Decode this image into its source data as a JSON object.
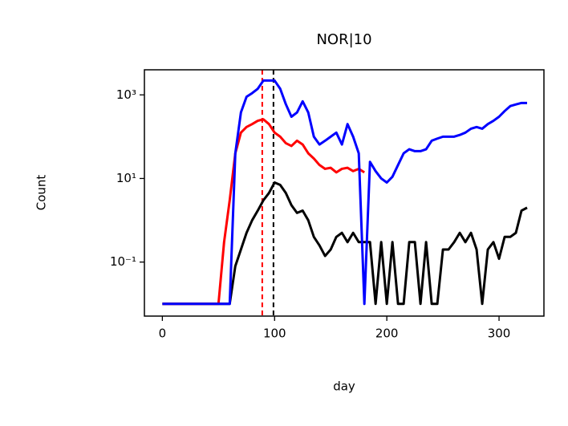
{
  "chart_data": {
    "type": "line",
    "title": "NOR|10",
    "xlabel": "day",
    "ylabel": "Count",
    "yscale": "log",
    "xlim": [
      -16,
      340
    ],
    "xticks": [
      0,
      100,
      200,
      300
    ],
    "ylim": [
      0.0051,
      3981
    ],
    "yticks": [
      {
        "value": 0.1,
        "label": "10⁻¹"
      },
      {
        "value": 10,
        "label": "10¹"
      },
      {
        "value": 1000,
        "label": "10³"
      }
    ],
    "x": [
      0,
      5,
      10,
      15,
      20,
      25,
      30,
      35,
      40,
      45,
      50,
      55,
      60,
      65,
      70,
      75,
      80,
      85,
      90,
      95,
      100,
      105,
      110,
      115,
      120,
      125,
      130,
      135,
      140,
      145,
      150,
      155,
      160,
      165,
      170,
      175,
      180,
      185,
      190,
      195,
      200,
      205,
      210,
      215,
      220,
      225,
      230,
      235,
      240,
      245,
      250,
      255,
      260,
      265,
      270,
      275,
      280,
      285,
      290,
      295,
      300,
      305,
      310,
      315,
      320,
      325
    ],
    "series": [
      {
        "color": "#000000",
        "values": [
          0.01,
          0.01,
          0.01,
          0.01,
          0.01,
          0.01,
          0.01,
          0.01,
          0.01,
          0.01,
          0.01,
          0.01,
          0.01,
          0.08,
          0.2,
          0.5,
          1,
          1.7,
          3,
          4.5,
          8,
          7,
          4.5,
          2.3,
          1.5,
          1.7,
          1,
          0.4,
          0.25,
          0.14,
          0.2,
          0.4,
          0.5,
          0.3,
          0.5,
          0.3,
          0.3,
          0.3,
          0.01,
          0.3,
          0.01,
          0.3,
          0.01,
          0.01,
          0.3,
          0.3,
          0.01,
          0.3,
          0.01,
          0.01,
          0.2,
          0.2,
          0.3,
          0.5,
          0.3,
          0.5,
          0.2,
          0.01,
          0.2,
          0.3,
          0.12,
          0.4,
          0.4,
          0.5,
          1.7,
          2
        ]
      },
      {
        "color": "#ff0000",
        "values": [
          0.01,
          0.01,
          0.01,
          0.01,
          0.01,
          0.01,
          0.01,
          0.01,
          0.01,
          0.01,
          0.01,
          0.3,
          3,
          40,
          125,
          170,
          200,
          240,
          260,
          200,
          125,
          100,
          70,
          60,
          80,
          65,
          40,
          30,
          21,
          17,
          18,
          14,
          17,
          18,
          15,
          17,
          14,
          null,
          null,
          null,
          null,
          null,
          null,
          null,
          null,
          null,
          null,
          null,
          null,
          null,
          null,
          null,
          null,
          null,
          null,
          null,
          null,
          null,
          null,
          null,
          null,
          null,
          null,
          null,
          null,
          null
        ]
      },
      {
        "color": "#0000ff",
        "values": [
          0.01,
          0.01,
          0.01,
          0.01,
          0.01,
          0.01,
          0.01,
          0.01,
          0.01,
          0.01,
          0.01,
          0.01,
          0.01,
          40,
          380,
          900,
          1100,
          1400,
          2200,
          2200,
          2200,
          1400,
          600,
          300,
          380,
          700,
          380,
          100,
          65,
          80,
          100,
          125,
          65,
          200,
          100,
          40,
          0.01,
          25,
          15,
          10,
          8,
          11,
          21,
          40,
          50,
          45,
          45,
          50,
          80,
          90,
          100,
          100,
          100,
          110,
          125,
          155,
          170,
          155,
          200,
          240,
          300,
          410,
          540,
          590,
          640,
          640
        ]
      }
    ],
    "vlines": [
      {
        "x": 89,
        "color": "#ff0000"
      },
      {
        "x": 99,
        "color": "#000000"
      }
    ]
  }
}
